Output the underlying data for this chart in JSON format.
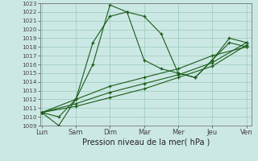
{
  "xlabel": "Pression niveau de la mer( hPa )",
  "xtick_labels": [
    "Lun",
    "Sam",
    "Dim",
    "Mar",
    "Mer",
    "Jeu",
    "Ven"
  ],
  "ylim": [
    1009,
    1023
  ],
  "yticks": [
    1009,
    1010,
    1011,
    1012,
    1013,
    1014,
    1015,
    1016,
    1017,
    1018,
    1019,
    1020,
    1021,
    1022,
    1023
  ],
  "background_color": "#cce8e4",
  "grid_color": "#99ccbb",
  "line_color": "#1a5c1a",
  "line1_x": [
    0.0,
    0.5,
    1.0,
    1.5,
    2.0,
    2.5,
    3.0,
    3.5,
    4.0,
    4.5,
    5.0,
    5.5,
    6.0
  ],
  "line1_y": [
    1010.5,
    1009.0,
    1012.0,
    1016.0,
    1022.8,
    1022.0,
    1021.5,
    1019.5,
    1015.0,
    1014.5,
    1016.5,
    1019.0,
    1018.5
  ],
  "line2_x": [
    0.0,
    0.5,
    1.0,
    1.5,
    2.0,
    2.5,
    3.0,
    3.5,
    4.0,
    4.5,
    5.0,
    5.5,
    6.0
  ],
  "line2_y": [
    1010.5,
    1010.0,
    1012.0,
    1018.5,
    1021.5,
    1022.0,
    1016.5,
    1015.5,
    1015.0,
    1014.5,
    1016.5,
    1018.5,
    1018.0
  ],
  "line3_x": [
    0.0,
    1.0,
    2.0,
    3.0,
    4.0,
    5.0,
    6.0
  ],
  "line3_y": [
    1010.5,
    1012.0,
    1013.5,
    1014.5,
    1015.5,
    1017.0,
    1018.0
  ],
  "line4_x": [
    0.0,
    1.0,
    2.0,
    3.0,
    4.0,
    5.0,
    6.0
  ],
  "line4_y": [
    1010.5,
    1011.5,
    1012.8,
    1013.8,
    1014.8,
    1016.2,
    1018.5
  ],
  "line5_x": [
    0.0,
    1.0,
    2.0,
    3.0,
    4.0,
    5.0,
    6.0
  ],
  "line5_y": [
    1010.5,
    1011.2,
    1012.2,
    1013.2,
    1014.5,
    1015.8,
    1018.2
  ]
}
